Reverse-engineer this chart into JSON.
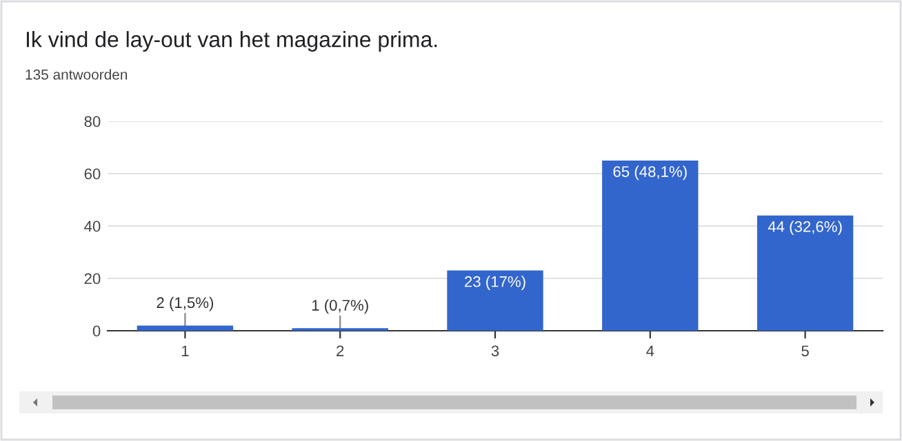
{
  "chart_data": {
    "type": "bar",
    "title": "Ik vind de lay-out van het magazine prima.",
    "subtitle": "135 antwoorden",
    "categories": [
      "1",
      "2",
      "3",
      "4",
      "5"
    ],
    "values": [
      2,
      1,
      23,
      65,
      44
    ],
    "value_labels": [
      "2 (1,5%)",
      "1 (0,7%)",
      "23 (17%)",
      "65 (48,1%)",
      "44 (32,6%)"
    ],
    "color": "#3366cc",
    "ylim": [
      0,
      80
    ],
    "yticks": [
      0,
      20,
      40,
      60,
      80
    ],
    "grid": "y",
    "legend": false
  }
}
